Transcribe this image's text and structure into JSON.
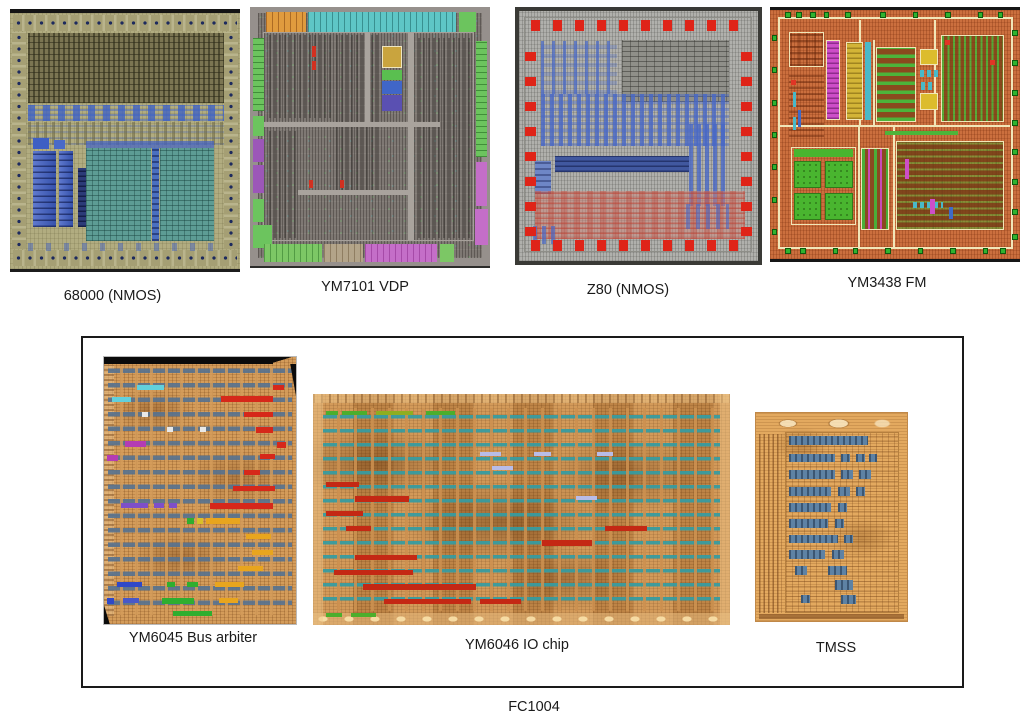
{
  "figure": {
    "background": "#ffffff",
    "top_row": [
      {
        "id": "68000",
        "label": "68000 (NMOS)"
      },
      {
        "id": "ym7101",
        "label": "YM7101 VDP"
      },
      {
        "id": "z80",
        "label": "Z80 (NMOS)"
      },
      {
        "id": "ym3438",
        "label": "YM3438 FM"
      }
    ],
    "fc1004_group": {
      "caption": "FC1004",
      "chips": [
        {
          "id": "ym6045",
          "label": "YM6045 Bus arbiter"
        },
        {
          "id": "ym6046",
          "label": "YM6046 IO chip"
        },
        {
          "id": "tmss",
          "label": "TMSS"
        }
      ]
    },
    "palette": {
      "box_border": "#1a1a1a",
      "label_text": "#1a1a1a",
      "die_68000_base": "#b1ac80",
      "die_68000_blue": "#3c5cc3",
      "die_68000_teal": "#5d9c94",
      "die_ym7101_base": "#7e7873",
      "die_ym7101_orange": "#e09b3e",
      "die_ym7101_cyan": "#5ec6c6",
      "die_ym7101_green": "#6cc45e",
      "die_ym7101_magenta": "#c46ec8",
      "die_z80_base": "#b0b0ac",
      "die_z80_pad_red": "#df2418",
      "die_z80_blue": "#4868c6",
      "die_ym3438_base": "#cb6f3e",
      "die_ym3438_cream": "#f1e6b8",
      "die_ym3438_green": "#49b52f",
      "fc1004_die_base": "#d49c5a",
      "fc1004_row_slate": "#56728f",
      "fc1004_row_teal": "#349ca2"
    }
  }
}
